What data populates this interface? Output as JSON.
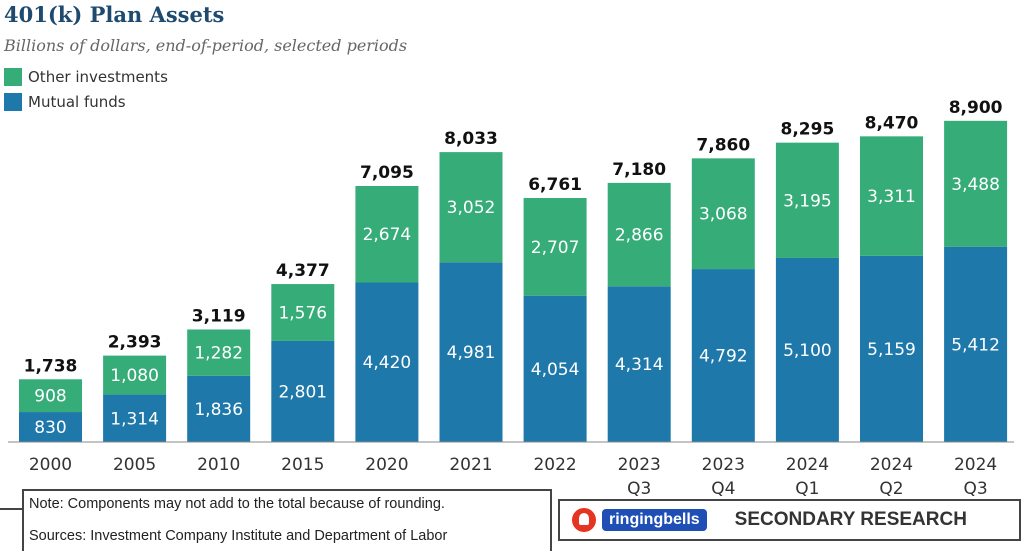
{
  "header": {
    "title": "401(k) Plan Assets",
    "subtitle": "Billions of dollars, end-of-period, selected periods"
  },
  "colors": {
    "other": "#36ad78",
    "mutual": "#1e78aa",
    "axis_text": "#333333",
    "total_text": "#111111"
  },
  "chart_data": {
    "type": "bar",
    "stacked": true,
    "categories": [
      "2000",
      "2005",
      "2010",
      "2015",
      "2020",
      "2021",
      "2022",
      "2023\nQ3",
      "2023\nQ4",
      "2024\nQ1",
      "2024\nQ2",
      "2024\nQ3"
    ],
    "series": [
      {
        "name": "Mutual funds",
        "values": [
          830,
          1314,
          1836,
          2801,
          4420,
          4981,
          4054,
          4314,
          4792,
          5100,
          5159,
          5412
        ]
      },
      {
        "name": "Other investments",
        "values": [
          908,
          1080,
          1282,
          1576,
          2674,
          3052,
          2707,
          2866,
          3068,
          3195,
          3311,
          3488
        ]
      }
    ],
    "totals": [
      1738,
      2393,
      3119,
      4377,
      7095,
      8033,
      6761,
      7180,
      7860,
      8295,
      8470,
      8900
    ],
    "ylim": [
      0,
      9200
    ],
    "grid": false,
    "legend": "top-left"
  },
  "footer": {
    "note": "Note: Components may not add to the total because of rounding.",
    "sources": "Sources: Investment Company Institute and Department of Labor"
  },
  "branding": {
    "name": "ringingbells",
    "tag": "SECONDARY RESEARCH"
  }
}
